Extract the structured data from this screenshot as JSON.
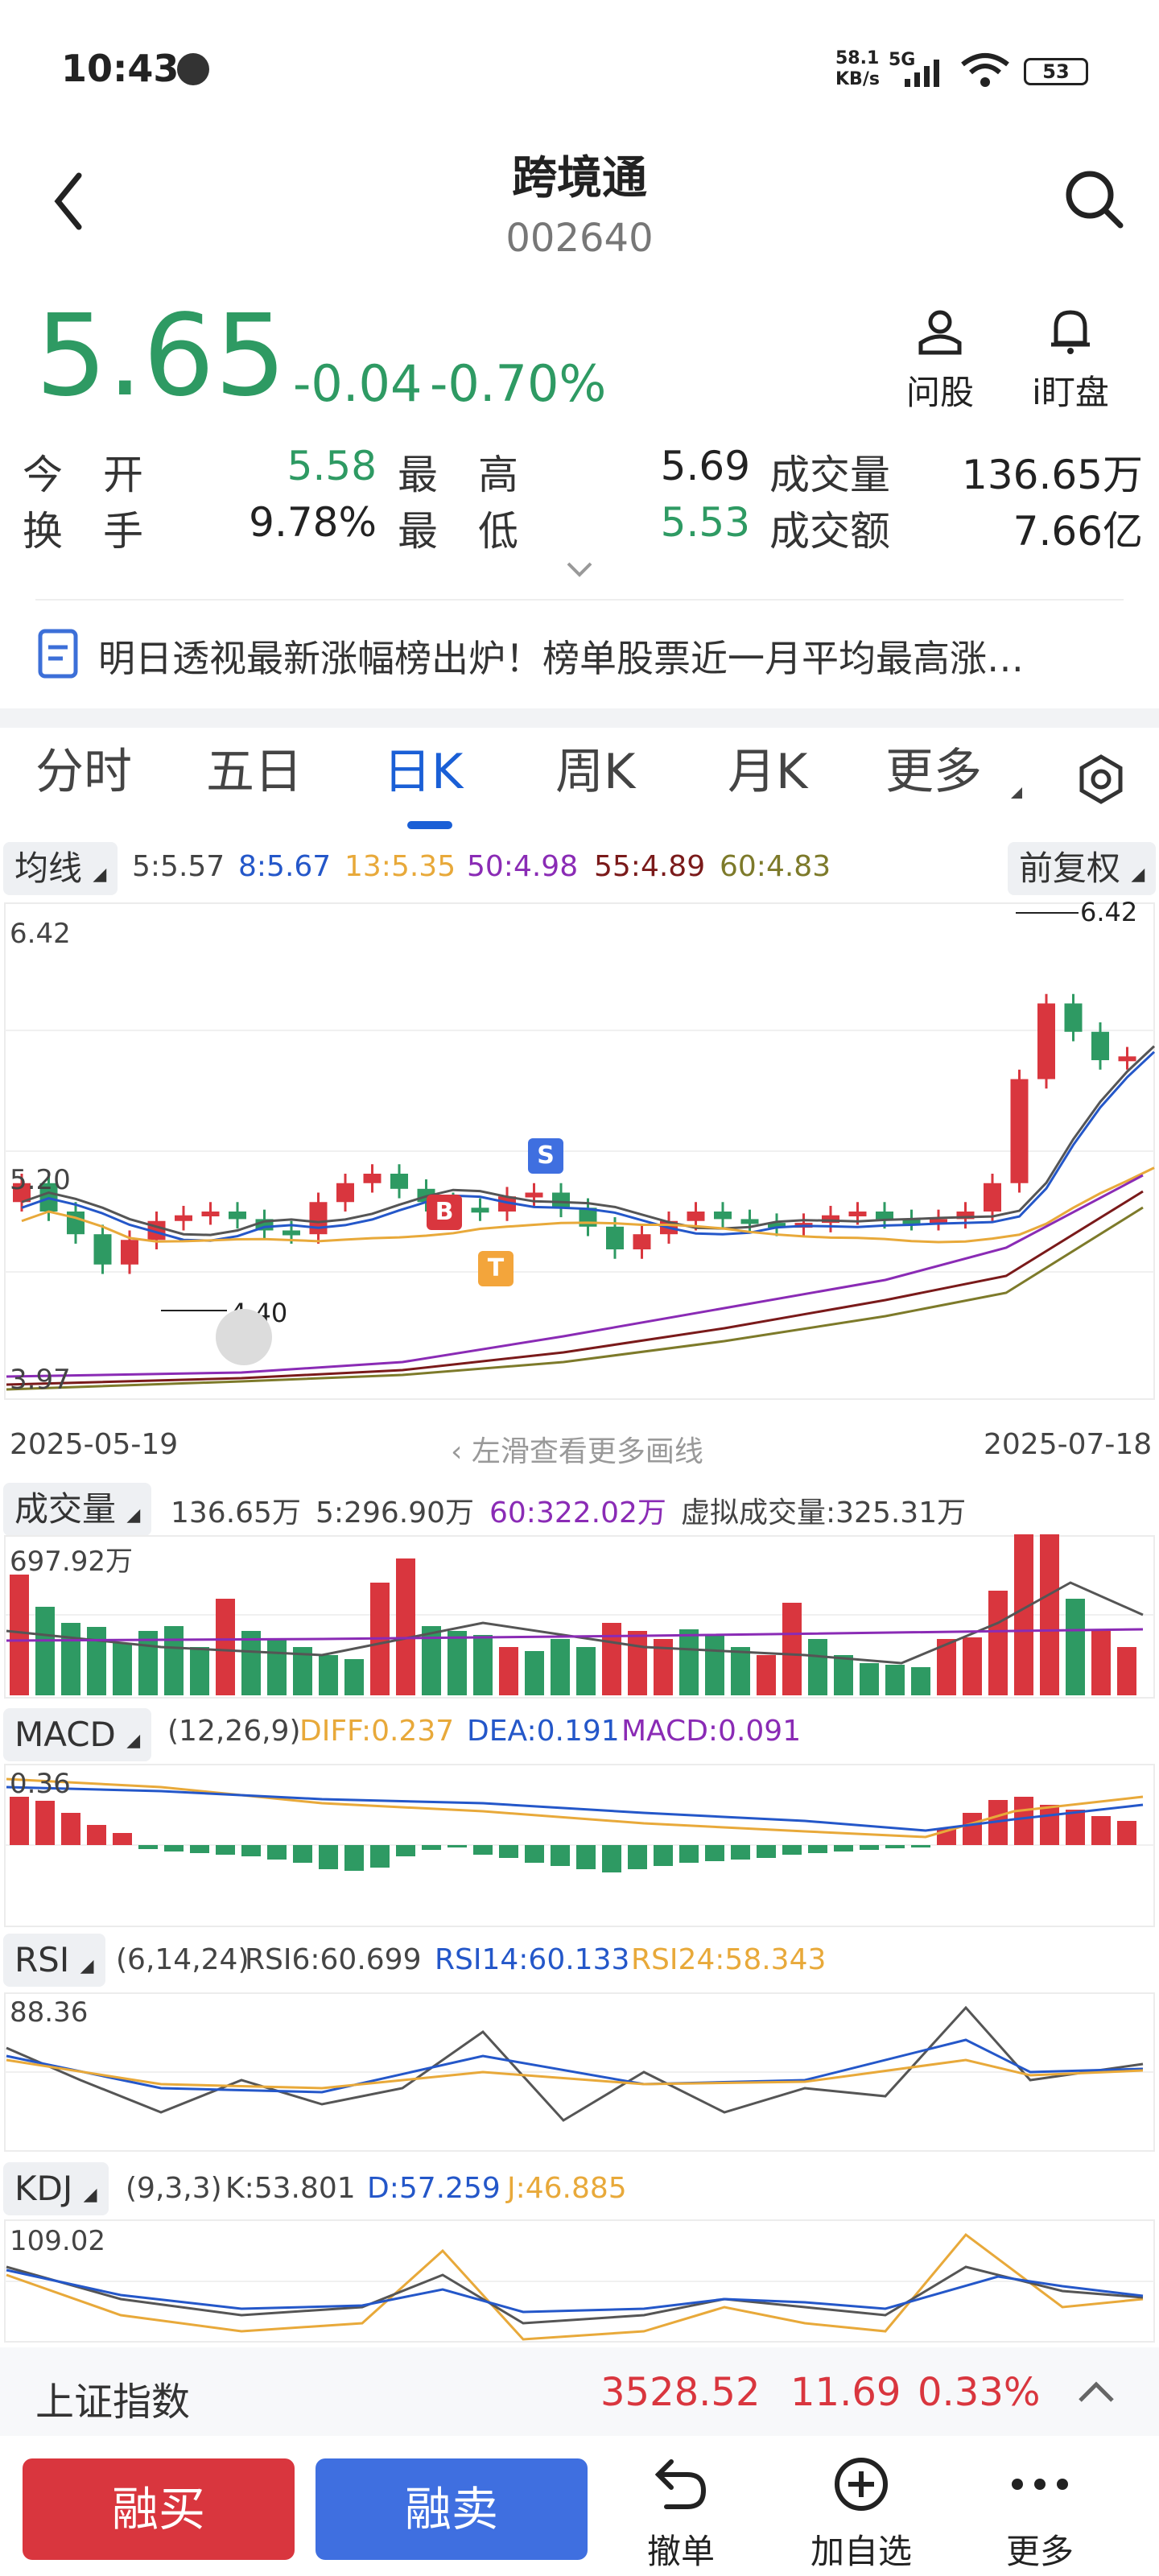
{
  "status_bar": {
    "time": "10:43",
    "net_speed_top": "58.1",
    "net_speed_bottom": "KB/s",
    "network": "5G",
    "battery": "53"
  },
  "header": {
    "title": "跨境通",
    "code": "002640"
  },
  "quote": {
    "price": "5.65",
    "change": "-0.04",
    "change_pct": "-0.70%"
  },
  "actions": {
    "ask": "问股",
    "watch": "i盯盘"
  },
  "stats": {
    "open_label": "今　开",
    "open": "5.58",
    "high_label": "最　高",
    "high": "5.69",
    "volume_label": "成交量",
    "volume": "136.65万",
    "turnover_label": "换　手",
    "turnover": "9.78%",
    "low_label": "最　低",
    "low": "5.53",
    "amount_label": "成交额",
    "amount": "7.66亿"
  },
  "news": {
    "text": "明日透视最新涨幅榜出炉！榜单股票近一月平均最高涨…"
  },
  "tabs": [
    "分时",
    "五日",
    "日K",
    "周K",
    "月K",
    "更多"
  ],
  "kline": {
    "indicator_btn": "均线",
    "ma5": "5:5.57",
    "ma8": "8:5.67",
    "ma13": "13:5.35",
    "ma50": "50:4.98",
    "ma55": "55:4.89",
    "ma60": "60:4.83",
    "adjust_btn": "前复权",
    "y_top": "6.42",
    "y_mid": "5.20",
    "y_bottom": "3.97",
    "max_label": "6.42",
    "min_label": "4.40",
    "date_start": "2025-05-19",
    "date_end": "2025-07-18",
    "swipe_hint": "左滑查看更多画线",
    "marker_b": "B",
    "marker_s": "S",
    "marker_t": "T"
  },
  "volume": {
    "btn": "成交量",
    "current": "136.65万",
    "ma5": "5:296.90万",
    "ma60": "60:322.02万",
    "virtual": "虚拟成交量:325.31万",
    "y_top": "697.92万"
  },
  "macd": {
    "btn": "MACD",
    "params": "(12,26,9)",
    "diff": "DIFF:0.237",
    "dea": "DEA:0.191",
    "macd": "MACD:0.091",
    "y_top": "0.36"
  },
  "rsi": {
    "btn": "RSI",
    "params": "(6,14,24)",
    "rsi6": "RSI6:60.699",
    "rsi14": "RSI14:60.133",
    "rsi24": "RSI24:58.343",
    "y_top": "88.36"
  },
  "kdj": {
    "btn": "KDJ",
    "params": "(9,3,3)",
    "k": "K:53.801",
    "d": "D:57.259",
    "j": "J:46.885",
    "y_top": "109.02"
  },
  "index_bar": {
    "name": "上证指数",
    "value": "3528.52",
    "change": "11.69",
    "pct": "0.33%"
  },
  "bottom": {
    "buy": "融买",
    "sell": "融卖",
    "cancel": "撤单",
    "add": "加自选",
    "more": "更多"
  },
  "colors": {
    "up": "#d9363e",
    "down": "#2e9a63",
    "ma5": "#555555",
    "ma8": "#2457c9",
    "ma13": "#e8a93a",
    "ma50": "#8a2bb5",
    "ma55": "#7a1a1a",
    "ma60": "#7d7a2a",
    "buy": "#d9363e",
    "sell": "#3f6fe0"
  }
}
